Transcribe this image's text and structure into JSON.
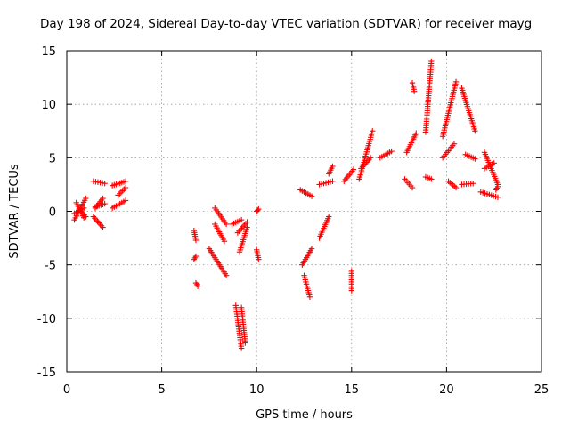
{
  "chart_data": {
    "type": "scatter",
    "title": "Day 198 of 2024, Sidereal Day-to-day VTEC variation (SDTVAR) for receiver mayg",
    "xlabel": "GPS time / hours",
    "ylabel": "SDTVAR / TECUs",
    "xlim": [
      0,
      25
    ],
    "ylim": [
      -15,
      15
    ],
    "xticks": [
      0,
      5,
      10,
      15,
      20,
      25
    ],
    "yticks": [
      -15,
      -10,
      -5,
      0,
      5,
      10,
      15
    ],
    "xtick_labels": [
      "0",
      "5",
      "10",
      "15",
      "20",
      "25"
    ],
    "ytick_labels": [
      "-15",
      "-10",
      "-5",
      "0",
      "5",
      "10",
      "15"
    ],
    "grid": true,
    "marker": "+",
    "marker_color": "#ff0000",
    "series": [
      {
        "name": "SDTVAR",
        "segments": [
          [
            [
              0.4,
              -0.8
            ],
            [
              1.0,
              1.2
            ]
          ],
          [
            [
              0.5,
              0.8
            ],
            [
              0.9,
              -0.6
            ]
          ],
          [
            [
              0.4,
              -0.2
            ],
            [
              0.9,
              0.3
            ]
          ],
          [
            [
              0.7,
              0.1
            ],
            [
              1.0,
              -0.5
            ]
          ],
          [
            [
              1.4,
              -0.5
            ],
            [
              1.9,
              -1.5
            ]
          ],
          [
            [
              1.5,
              0.3
            ],
            [
              1.9,
              1.2
            ]
          ],
          [
            [
              1.4,
              2.8
            ],
            [
              2.0,
              2.6
            ]
          ],
          [
            [
              1.5,
              0.4
            ],
            [
              2.0,
              0.7
            ]
          ],
          [
            [
              2.4,
              2.4
            ],
            [
              3.1,
              2.8
            ]
          ],
          [
            [
              2.4,
              0.3
            ],
            [
              3.1,
              1.0
            ]
          ],
          [
            [
              2.7,
              1.5
            ],
            [
              3.1,
              2.2
            ]
          ],
          [
            [
              6.7,
              -4.5
            ],
            [
              6.8,
              -4.2
            ]
          ],
          [
            [
              6.7,
              -1.8
            ],
            [
              6.8,
              -2.7
            ]
          ],
          [
            [
              6.8,
              -6.7
            ],
            [
              6.9,
              -7.0
            ]
          ],
          [
            [
              7.5,
              -3.5
            ],
            [
              8.4,
              -6.0
            ]
          ],
          [
            [
              7.8,
              -1.2
            ],
            [
              8.3,
              -2.8
            ]
          ],
          [
            [
              7.8,
              0.3
            ],
            [
              8.4,
              -1.2
            ]
          ],
          [
            [
              8.7,
              -1.2
            ],
            [
              9.2,
              -0.8
            ]
          ],
          [
            [
              8.9,
              -8.8
            ],
            [
              9.2,
              -12.8
            ]
          ],
          [
            [
              9.1,
              -3.8
            ],
            [
              9.5,
              -1.5
            ]
          ],
          [
            [
              9.2,
              -9.0
            ],
            [
              9.4,
              -12.3
            ]
          ],
          [
            [
              9.0,
              -2.0
            ],
            [
              9.5,
              -1.0
            ]
          ],
          [
            [
              10.0,
              0.0
            ],
            [
              10.1,
              0.2
            ]
          ],
          [
            [
              10.0,
              -3.6
            ],
            [
              10.1,
              -4.5
            ]
          ],
          [
            [
              12.3,
              2.0
            ],
            [
              12.9,
              1.4
            ]
          ],
          [
            [
              12.4,
              -5.0
            ],
            [
              12.9,
              -3.5
            ]
          ],
          [
            [
              12.5,
              -6.0
            ],
            [
              12.8,
              -8.0
            ]
          ],
          [
            [
              13.3,
              -2.5
            ],
            [
              13.8,
              -0.5
            ]
          ],
          [
            [
              13.3,
              2.5
            ],
            [
              14.0,
              2.8
            ]
          ],
          [
            [
              13.8,
              3.5
            ],
            [
              14.0,
              4.2
            ]
          ],
          [
            [
              14.6,
              2.8
            ],
            [
              15.1,
              3.9
            ]
          ],
          [
            [
              15.0,
              -5.6
            ],
            [
              15.0,
              -7.4
            ]
          ],
          [
            [
              15.4,
              3.0
            ],
            [
              16.1,
              7.5
            ]
          ],
          [
            [
              15.5,
              4.0
            ],
            [
              16.0,
              5.0
            ]
          ],
          [
            [
              16.5,
              5.0
            ],
            [
              17.1,
              5.6
            ]
          ],
          [
            [
              17.8,
              3.0
            ],
            [
              18.2,
              2.2
            ]
          ],
          [
            [
              17.9,
              5.5
            ],
            [
              18.4,
              7.3
            ]
          ],
          [
            [
              18.2,
              12.0
            ],
            [
              18.3,
              11.2
            ]
          ],
          [
            [
              18.9,
              7.4
            ],
            [
              19.2,
              14.0
            ]
          ],
          [
            [
              18.9,
              3.2
            ],
            [
              19.2,
              3.0
            ]
          ],
          [
            [
              19.8,
              7.0
            ],
            [
              20.5,
              12.1
            ]
          ],
          [
            [
              19.8,
              5.0
            ],
            [
              20.4,
              6.3
            ]
          ],
          [
            [
              20.1,
              2.8
            ],
            [
              20.5,
              2.2
            ]
          ],
          [
            [
              20.8,
              11.5
            ],
            [
              21.5,
              7.5
            ]
          ],
          [
            [
              20.8,
              2.5
            ],
            [
              21.4,
              2.6
            ]
          ],
          [
            [
              21.0,
              5.3
            ],
            [
              21.5,
              4.9
            ]
          ],
          [
            [
              21.8,
              1.8
            ],
            [
              22.7,
              1.3
            ]
          ],
          [
            [
              22.0,
              5.5
            ],
            [
              22.7,
              2.5
            ]
          ],
          [
            [
              22.0,
              4.0
            ],
            [
              22.5,
              4.5
            ]
          ],
          [
            [
              22.6,
              2.0
            ],
            [
              22.7,
              2.3
            ]
          ]
        ]
      }
    ]
  }
}
